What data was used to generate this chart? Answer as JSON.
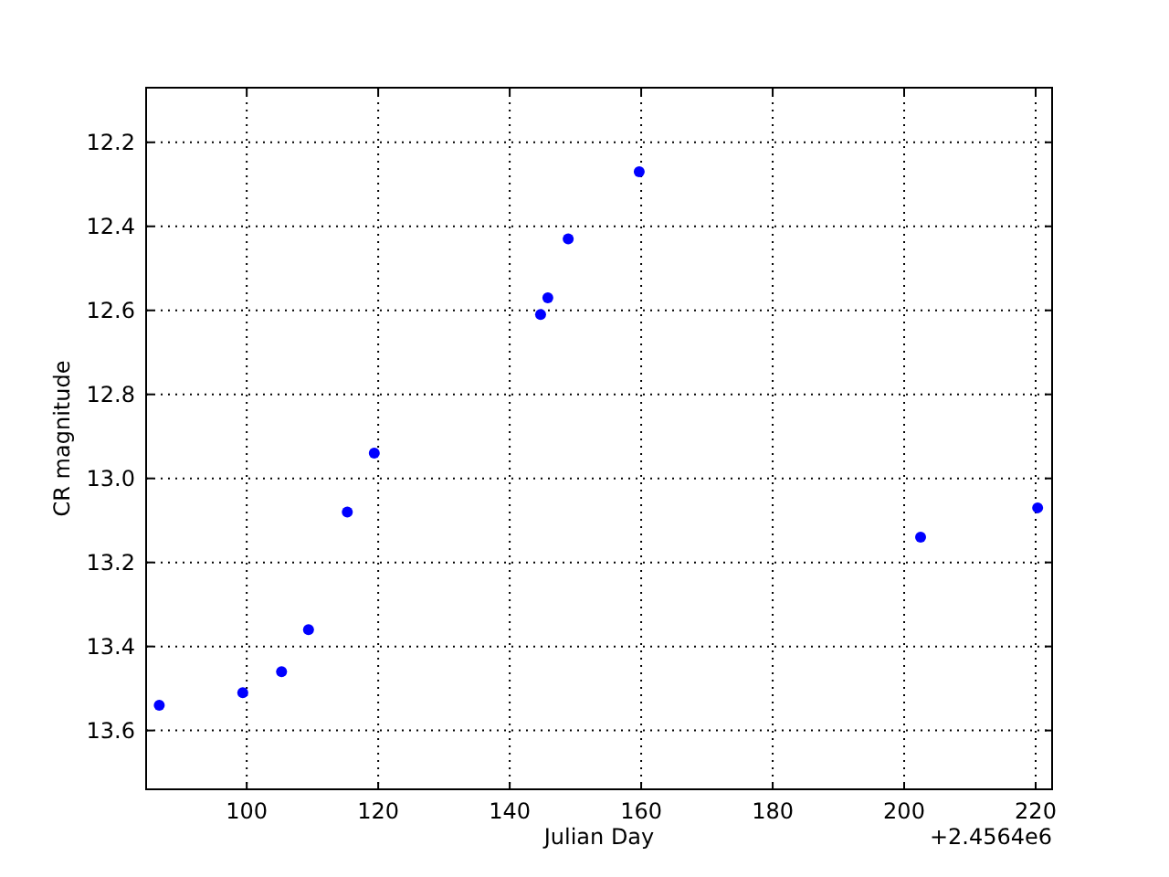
{
  "chart_data": {
    "type": "scatter",
    "xlabel": "Julian Day",
    "ylabel": "CR magnitude",
    "annotations": [
      "+2.4564e6"
    ],
    "x": [
      86.7,
      99.4,
      105.3,
      109.4,
      115.3,
      119.4,
      144.7,
      145.8,
      148.9,
      159.7,
      202.5,
      220.3
    ],
    "series": [
      {
        "color": "#0000ff",
        "values": [
          13.54,
          13.51,
          13.46,
          13.36,
          13.08,
          12.94,
          12.61,
          12.57,
          12.43,
          12.27,
          13.14,
          13.07
        ]
      }
    ],
    "xlim": [
      84.7,
      222.5
    ],
    "xticks": [
      100,
      120,
      140,
      160,
      180,
      200,
      220
    ],
    "ylim": [
      13.74,
      12.07
    ],
    "yticks": [
      {
        "value": 12.2,
        "label": "12.2"
      },
      {
        "value": 12.4,
        "label": "12.4"
      },
      {
        "value": 12.6,
        "label": "12.6"
      },
      {
        "value": 12.8,
        "label": "12.8"
      },
      {
        "value": 13.0,
        "label": "13.0"
      },
      {
        "value": 13.2,
        "label": "13.2"
      },
      {
        "value": 13.4,
        "label": "13.4"
      },
      {
        "value": 13.6,
        "label": "13.6"
      }
    ],
    "grid": true,
    "marker": "circle"
  }
}
